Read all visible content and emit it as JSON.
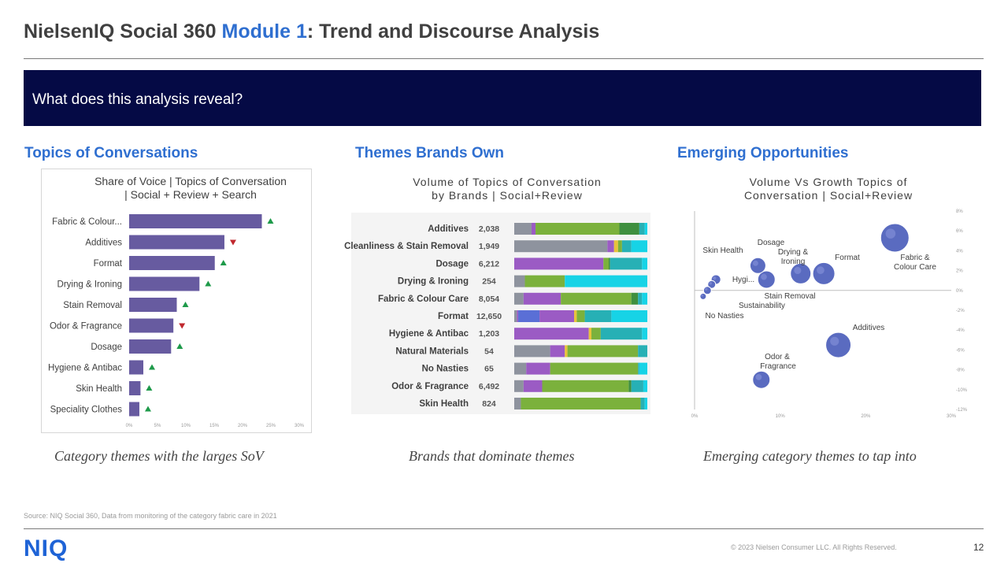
{
  "header": {
    "title_prefix": "NielsenIQ Social 360 ",
    "title_highlight": "Module 1",
    "title_suffix": ": Trend and Discourse Analysis"
  },
  "banner": {
    "text": "What does this analysis reveal?"
  },
  "sections": {
    "topics": {
      "heading": "Topics of Conversations",
      "caption": "Category themes with the larges SoV",
      "chart_title_line1": "Share of Voice | Topics of Conversation",
      "chart_title_line2": "| Social + Review + Search"
    },
    "themes": {
      "heading": "Themes Brands Own",
      "caption": "Brands that dominate themes",
      "chart_title_line1": "Volume of Topics of Conversation",
      "chart_title_line2": "by Brands | Social+Review"
    },
    "emerging": {
      "heading": "Emerging Opportunities",
      "caption": "Emerging category themes to tap into",
      "chart_title_line1": "Volume Vs Growth  Topics of",
      "chart_title_line2": "Conversation  | Social+Review"
    }
  },
  "footer": {
    "source": "Source: NIQ  Social 360, Data  from monitoring of the category fabric care in 2021",
    "logo": "NIQ",
    "copyright": "© 2023  Nielsen Consumer LLC. All Rights Reserved.",
    "page_number": "12"
  },
  "colors": {
    "bar": "#675ba0",
    "up": "#1e9a4a",
    "down": "#c0282e",
    "seg_grey": "#8e939e",
    "seg_purple": "#9b5bc4",
    "seg_blue": "#5a6fd6",
    "seg_yellow": "#e8c23a",
    "seg_green": "#7bb13c",
    "seg_dgreen": "#3f8f3f",
    "seg_teal": "#27b0b5",
    "seg_cyan": "#17d3e6",
    "bubble": "#5a6bc0"
  },
  "chart_data": [
    {
      "type": "bar",
      "orientation": "horizontal",
      "title": "Share of Voice | Topics of Conversation | Social + Review + Search",
      "categories": [
        "Fabric & Colour...",
        "Additives",
        "Format",
        "Drying & Ironing",
        "Stain Removal",
        "Odor & Fragrance",
        "Dosage",
        "Hygiene & Antibac",
        "Skin Health",
        "Speciality Clothes"
      ],
      "values": [
        23.4,
        16.8,
        15.1,
        12.4,
        8.4,
        7.8,
        7.4,
        2.5,
        2.0,
        1.8
      ],
      "trend": [
        "up",
        "down",
        "up",
        "up",
        "up",
        "down",
        "up",
        "up",
        "up",
        "up"
      ],
      "xlim": [
        0,
        30
      ],
      "x_ticks": [
        "0%",
        "5%",
        "10%",
        "15%",
        "20%",
        "25%",
        "30%"
      ]
    },
    {
      "type": "bar",
      "orientation": "horizontal-stacked-100",
      "title": "Volume of Topics of Conversation by Brands | Social+Review",
      "categories": [
        "Additives",
        "Cleanliness & Stain Removal",
        "Dosage",
        "Drying & Ironing",
        "Fabric & Colour Care",
        "Format",
        "Hygiene & Antibac",
        "Natural Materials",
        "No Nasties",
        "Odor & Fragrance",
        "Skin Health"
      ],
      "volumes": [
        "2,038",
        "1,949",
        "6,212",
        "254",
        "8,054",
        "12,650",
        "1,203",
        "54",
        "65",
        "6,492",
        "824"
      ],
      "series_keys": [
        "seg_grey",
        "seg_purple",
        "seg_blue",
        "seg_yellow",
        "seg_green",
        "seg_dgreen",
        "seg_teal",
        "seg_cyan"
      ],
      "segments": [
        [
          [
            0,
            13
          ],
          [
            1,
            3
          ],
          [
            4,
            63
          ],
          [
            5,
            15
          ],
          [
            6,
            4
          ],
          [
            7,
            2
          ]
        ],
        [
          [
            0,
            70
          ],
          [
            1,
            5
          ],
          [
            3,
            3
          ],
          [
            4,
            3
          ],
          [
            6,
            7
          ],
          [
            7,
            12
          ]
        ],
        [
          [
            1,
            67
          ],
          [
            4,
            4
          ],
          [
            5,
            1
          ],
          [
            6,
            24
          ],
          [
            7,
            4
          ]
        ],
        [
          [
            0,
            8
          ],
          [
            4,
            30
          ],
          [
            7,
            62
          ]
        ],
        [
          [
            0,
            7
          ],
          [
            1,
            28
          ],
          [
            4,
            53
          ],
          [
            5,
            5
          ],
          [
            6,
            3
          ],
          [
            7,
            4
          ]
        ],
        [
          [
            0,
            2
          ],
          [
            1,
            1
          ],
          [
            2,
            16
          ],
          [
            1,
            26
          ],
          [
            3,
            2
          ],
          [
            4,
            6
          ],
          [
            6,
            20
          ],
          [
            7,
            27
          ]
        ],
        [
          [
            1,
            56
          ],
          [
            3,
            2
          ],
          [
            4,
            7
          ],
          [
            6,
            31
          ],
          [
            7,
            4
          ]
        ],
        [
          [
            0,
            27
          ],
          [
            1,
            11
          ],
          [
            3,
            2
          ],
          [
            4,
            53
          ],
          [
            6,
            7
          ]
        ],
        [
          [
            0,
            9
          ],
          [
            1,
            18
          ],
          [
            4,
            66
          ],
          [
            6,
            1
          ],
          [
            7,
            6
          ]
        ],
        [
          [
            0,
            7
          ],
          [
            1,
            14
          ],
          [
            4,
            65
          ],
          [
            5,
            2
          ],
          [
            6,
            9
          ],
          [
            7,
            3
          ]
        ],
        [
          [
            0,
            5
          ],
          [
            4,
            90
          ],
          [
            6,
            3
          ],
          [
            7,
            2
          ]
        ]
      ]
    },
    {
      "type": "scatter",
      "title": "Volume Vs Growth  Topics of Conversation  | Social+Review",
      "xlim": [
        0,
        30
      ],
      "ylim": [
        -12,
        8
      ],
      "x_ticks": [
        "0%",
        "10%",
        "20%",
        "30%"
      ],
      "y_ticks": [
        "8%",
        "6%",
        "4%",
        "2%",
        "0%",
        "-2%",
        "-4%",
        "-6%",
        "-8%",
        "-10%",
        "-12%"
      ],
      "points": [
        {
          "label": "Fabric & Colour Care",
          "x": 23.4,
          "y": 5.3,
          "size": 18
        },
        {
          "label": "Format",
          "x": 15.1,
          "y": 1.7,
          "size": 14
        },
        {
          "label": "Drying & Ironing",
          "x": 12.4,
          "y": 1.7,
          "size": 13
        },
        {
          "label": "Stain Removal",
          "x": 8.4,
          "y": 1.1,
          "size": 11
        },
        {
          "label": "Dosage",
          "x": 7.4,
          "y": 2.5,
          "size": 10
        },
        {
          "label": "Hygi...",
          "x": 2.5,
          "y": 1.1,
          "size": 6
        },
        {
          "label": "Skin Health",
          "x": 2.0,
          "y": 0.6,
          "size": 5
        },
        {
          "label": "Sustainability",
          "x": 1.5,
          "y": 0.0,
          "size": 5
        },
        {
          "label": "No Nasties",
          "x": 1.0,
          "y": -0.6,
          "size": 4
        },
        {
          "label": "Additives",
          "x": 16.8,
          "y": -5.5,
          "size": 16
        },
        {
          "label": "Odor & Fragrance",
          "x": 7.8,
          "y": -9.0,
          "size": 11
        }
      ]
    }
  ]
}
